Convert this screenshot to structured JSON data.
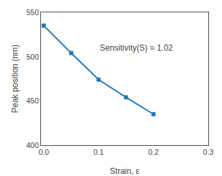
{
  "chart_data": {
    "type": "line",
    "x": [
      0.0,
      0.05,
      0.1,
      0.15,
      0.2
    ],
    "values": [
      535,
      504,
      474,
      454,
      435
    ],
    "xlabel": "Strain, ε",
    "ylabel": "Peak position (nm)",
    "xlim": [
      -0.005,
      0.3
    ],
    "ylim": [
      400,
      550
    ],
    "xticks": [
      {
        "value": 0.0,
        "label": "0.0"
      },
      0.1,
      0.2,
      0.3
    ],
    "yticks": [
      400,
      450,
      500,
      550
    ],
    "annotations": [
      {
        "text": "Sensitivity(S) = 1.02",
        "x": 0.1,
        "y": 510
      }
    ],
    "marker": "square",
    "line_style": "solid",
    "grid": false
  }
}
